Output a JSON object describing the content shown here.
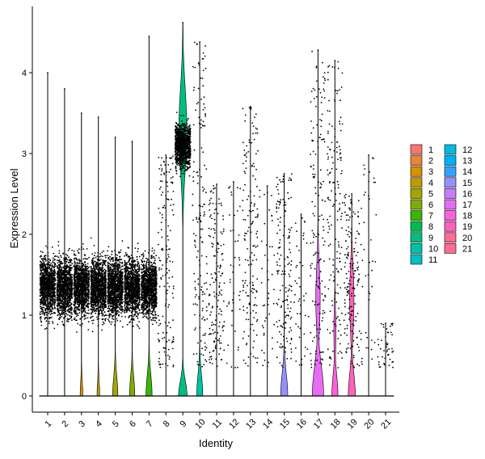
{
  "chart_data": {
    "type": "violin",
    "title": "",
    "xlabel": "Identity",
    "ylabel": "Expression Level",
    "ylim": [
      -0.2,
      4.75
    ],
    "yticks": [
      0,
      1,
      2,
      3,
      4
    ],
    "categories": [
      "1",
      "2",
      "3",
      "4",
      "5",
      "6",
      "7",
      "8",
      "9",
      "10",
      "11",
      "12",
      "13",
      "14",
      "15",
      "16",
      "17",
      "18",
      "19",
      "20",
      "21"
    ],
    "colors": [
      "#F8766D",
      "#E8853A",
      "#D89000",
      "#C09B00",
      "#A3A500",
      "#7CAE00",
      "#39B600",
      "#00BB4E",
      "#00BF7D",
      "#00C1A3",
      "#00BFC4",
      "#00BAE0",
      "#00B0F6",
      "#35A2FF",
      "#9590FF",
      "#C77CFF",
      "#E76BF3",
      "#FA62DB",
      "#FF62BC",
      "#FF6A98",
      "#FF6C91"
    ],
    "max_values": [
      4.0,
      3.8,
      3.5,
      3.45,
      3.2,
      3.15,
      4.45,
      2.98,
      4.62,
      4.38,
      2.62,
      2.65,
      3.58,
      2.6,
      2.75,
      2.25,
      4.28,
      4.15,
      2.5,
      2.98,
      0.9
    ],
    "violin_peak_width": [
      0.02,
      0.02,
      0.15,
      0.15,
      0.3,
      0.3,
      0.35,
      0.02,
      0.2,
      0.35,
      0.02,
      0.02,
      0.02,
      0.02,
      0.4,
      0.02,
      0.65,
      0.35,
      0.4,
      0.02,
      0.02
    ],
    "point_density": [
      "high",
      "high",
      "high",
      "high",
      "high",
      "high",
      "high",
      "medium",
      "high",
      "medium",
      "medium",
      "low",
      "medium",
      "low",
      "medium",
      "low",
      "medium",
      "medium",
      "medium",
      "low",
      "low"
    ],
    "legend": {
      "position": "right",
      "columns": [
        [
          "1",
          "2",
          "3",
          "4",
          "5",
          "6",
          "7",
          "8",
          "9",
          "10",
          "11"
        ],
        [
          "12",
          "13",
          "14",
          "15",
          "16",
          "17",
          "18",
          "19",
          "20",
          "21"
        ]
      ]
    },
    "grid": false
  }
}
